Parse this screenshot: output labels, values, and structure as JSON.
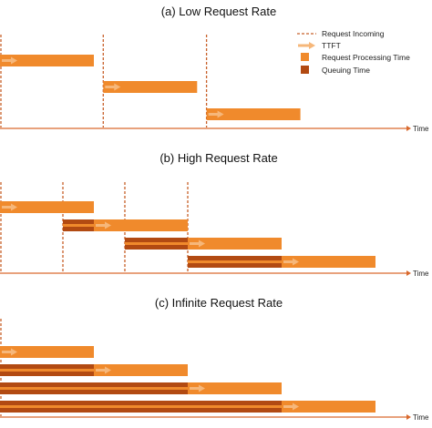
{
  "colors": {
    "processing": "#F08A2C",
    "queuing": "#B24A12",
    "ttft": "#F6B77A",
    "incoming": "#C8602A",
    "axis": "#D9692D"
  },
  "legend": [
    {
      "key": "incoming",
      "label": "Request Incoming",
      "icon": "dashed-line-icon"
    },
    {
      "key": "ttft",
      "label": "TTFT",
      "icon": "arrow-icon"
    },
    {
      "key": "processing",
      "label": "Request Processing Time",
      "icon": "orange-square-icon"
    },
    {
      "key": "queuing",
      "label": "Queuing Time",
      "icon": "dark-orange-square-icon"
    }
  ],
  "panels": [
    {
      "id": "low",
      "title": "(a) Low Request Rate",
      "axis_label": "Time",
      "requests": [
        {
          "arrival": 0,
          "queue": 0,
          "process": 1
        },
        {
          "arrival": 1.1,
          "queue": 0,
          "process": 1
        },
        {
          "arrival": 2.2,
          "queue": 0,
          "process": 1
        }
      ]
    },
    {
      "id": "high",
      "title": "(b) High Request Rate",
      "axis_label": "Time",
      "requests": [
        {
          "arrival": 0,
          "queue": 0,
          "process": 1
        },
        {
          "arrival": 0.67,
          "queue": 0.33,
          "process": 1
        },
        {
          "arrival": 1.33,
          "queue": 0.67,
          "process": 1
        },
        {
          "arrival": 2.0,
          "queue": 1.0,
          "process": 1
        }
      ]
    },
    {
      "id": "infinite",
      "title": "(c) Infinite Request Rate",
      "axis_label": "Time",
      "requests": [
        {
          "arrival": 0,
          "queue": 0,
          "process": 1
        },
        {
          "arrival": 0,
          "queue": 1,
          "process": 1
        },
        {
          "arrival": 0,
          "queue": 2,
          "process": 1
        },
        {
          "arrival": 0,
          "queue": 3,
          "process": 1
        }
      ]
    }
  ]
}
